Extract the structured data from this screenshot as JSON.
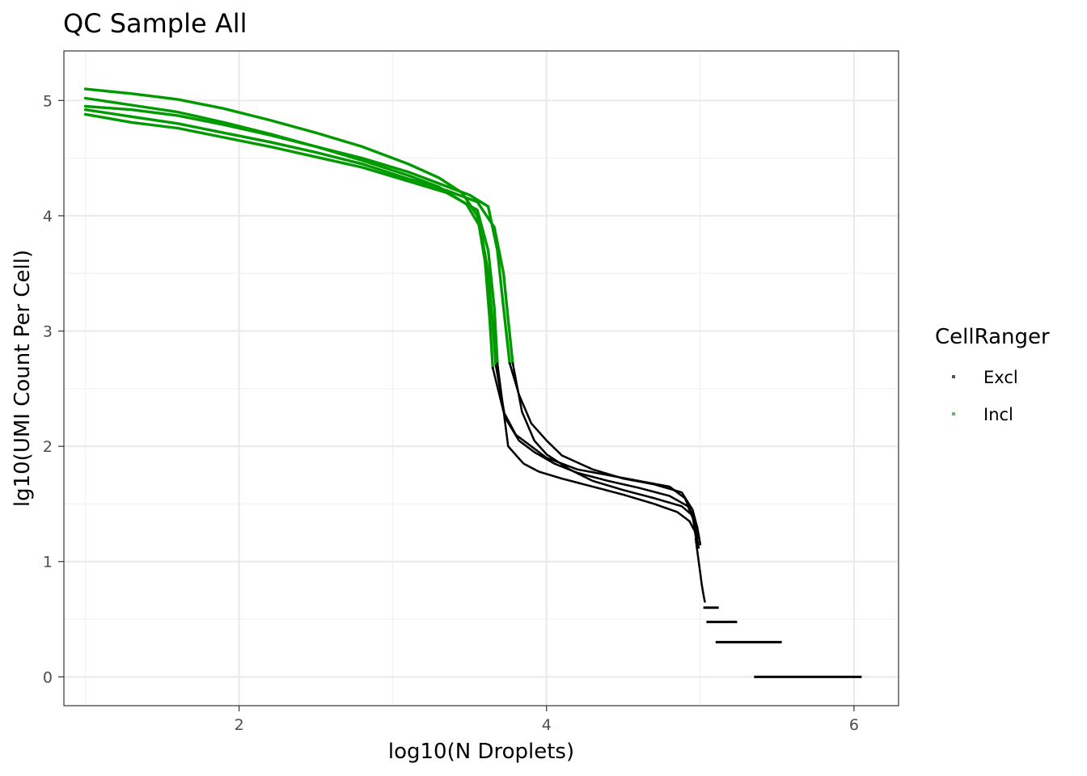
{
  "chart_data": {
    "type": "scatter",
    "title": "QC Sample All",
    "xlabel": "log10(N Droplets)",
    "ylabel": "lg10(UMI Count Per Cell)",
    "xlim": [
      0.86,
      6.29
    ],
    "ylim": [
      -0.25,
      5.43
    ],
    "x_ticks": [
      2,
      4,
      6
    ],
    "y_ticks": [
      0,
      1,
      2,
      3,
      4,
      5
    ],
    "grid": true,
    "legend": {
      "title": "CellRanger",
      "position": "right",
      "entries": [
        {
          "label": "Excl",
          "color": "#000000"
        },
        {
          "label": "Incl",
          "color": "#009900"
        }
      ]
    },
    "series": [
      {
        "name": "Incl",
        "color": "#009900",
        "curves": [
          {
            "x": [
              1.0,
              1.3,
              1.6,
              1.9,
              2.2,
              2.5,
              2.8,
              3.1,
              3.3,
              3.45,
              3.55,
              3.6,
              3.63,
              3.65
            ],
            "y": [
              5.1,
              5.06,
              5.01,
              4.93,
              4.83,
              4.72,
              4.6,
              4.45,
              4.33,
              4.2,
              4.0,
              3.6,
              3.1,
              2.68
            ]
          },
          {
            "x": [
              1.0,
              1.3,
              1.6,
              1.9,
              2.2,
              2.5,
              2.8,
              3.1,
              3.3,
              3.48,
              3.57,
              3.62,
              3.65,
              3.67
            ],
            "y": [
              5.02,
              4.96,
              4.9,
              4.81,
              4.71,
              4.6,
              4.48,
              4.35,
              4.25,
              4.1,
              3.9,
              3.5,
              3.05,
              2.7
            ]
          },
          {
            "x": [
              1.0,
              1.3,
              1.6,
              1.9,
              2.2,
              2.5,
              2.8,
              3.1,
              3.3,
              3.5,
              3.62,
              3.68,
              3.72,
              3.76
            ],
            "y": [
              4.95,
              4.92,
              4.87,
              4.79,
              4.7,
              4.6,
              4.5,
              4.38,
              4.28,
              4.18,
              4.08,
              3.7,
              3.2,
              2.72
            ]
          },
          {
            "x": [
              1.0,
              1.3,
              1.6,
              1.9,
              2.2,
              2.5,
              2.8,
              3.1,
              3.35,
              3.55,
              3.66,
              3.72,
              3.75,
              3.78
            ],
            "y": [
              4.92,
              4.86,
              4.8,
              4.72,
              4.64,
              4.55,
              4.45,
              4.32,
              4.22,
              4.12,
              3.9,
              3.5,
              3.1,
              2.72
            ]
          },
          {
            "x": [
              1.0,
              1.3,
              1.6,
              1.9,
              2.2,
              2.5,
              2.8,
              3.1,
              3.35,
              3.55,
              3.62,
              3.66,
              3.68
            ],
            "y": [
              4.88,
              4.81,
              4.76,
              4.68,
              4.6,
              4.51,
              4.42,
              4.3,
              4.2,
              4.05,
              3.7,
              3.2,
              2.72
            ]
          }
        ]
      },
      {
        "name": "Excl",
        "color": "#000000",
        "curves": [
          {
            "x": [
              3.65,
              3.72,
              3.8,
              3.9,
              4.0,
              4.2,
              4.4,
              4.6,
              4.8,
              4.9,
              4.95,
              4.97
            ],
            "y": [
              2.68,
              2.3,
              2.1,
              2.0,
              1.9,
              1.8,
              1.75,
              1.7,
              1.65,
              1.55,
              1.4,
              1.22
            ]
          },
          {
            "x": [
              3.67,
              3.73,
              3.82,
              3.92,
              4.05,
              4.2,
              4.4,
              4.6,
              4.8,
              4.92,
              4.96,
              4.98
            ],
            "y": [
              2.7,
              2.25,
              2.05,
              1.95,
              1.85,
              1.77,
              1.7,
              1.64,
              1.57,
              1.48,
              1.35,
              1.2
            ]
          },
          {
            "x": [
              3.76,
              3.82,
              3.9,
              4.0,
              4.1,
              4.3,
              4.5,
              4.7,
              4.88,
              4.95,
              4.98,
              5.0
            ],
            "y": [
              2.72,
              2.45,
              2.2,
              2.05,
              1.92,
              1.8,
              1.72,
              1.67,
              1.6,
              1.45,
              1.3,
              1.15
            ]
          },
          {
            "x": [
              3.78,
              3.84,
              3.92,
              4.0,
              4.15,
              4.3,
              4.5,
              4.7,
              4.88,
              4.95,
              4.98,
              5.0
            ],
            "y": [
              2.72,
              2.3,
              2.05,
              1.93,
              1.8,
              1.7,
              1.62,
              1.55,
              1.48,
              1.4,
              1.3,
              1.15
            ]
          },
          {
            "x": [
              3.68,
              3.75,
              3.85,
              3.95,
              4.1,
              4.3,
              4.5,
              4.7,
              4.85,
              4.93,
              4.97,
              4.99
            ],
            "y": [
              2.72,
              2.0,
              1.85,
              1.78,
              1.72,
              1.65,
              1.58,
              1.5,
              1.43,
              1.35,
              1.25,
              1.12
            ]
          },
          {
            "x": [
              4.97,
              4.98,
              4.99,
              5.0,
              5.01,
              5.02,
              5.03
            ],
            "y": [
              1.2,
              1.1,
              1.0,
              0.9,
              0.8,
              0.72,
              0.65
            ]
          }
        ],
        "horizontal_runs": [
          {
            "x": [
              5.02,
              5.12
            ],
            "y": 0.6
          },
          {
            "x": [
              5.04,
              5.24
            ],
            "y": 0.477
          },
          {
            "x": [
              5.1,
              5.53
            ],
            "y": 0.301
          },
          {
            "x": [
              5.35,
              6.05
            ],
            "y": 0.0
          }
        ]
      }
    ]
  }
}
